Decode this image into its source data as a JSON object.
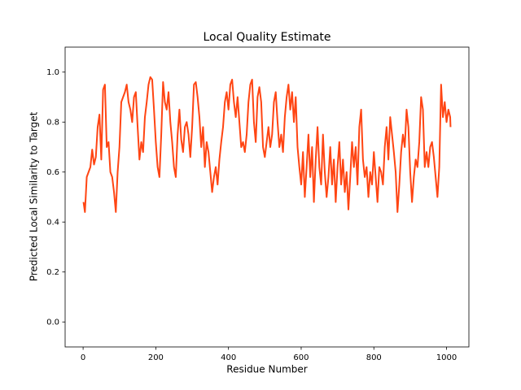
{
  "chart_data": {
    "type": "line",
    "title": "Local Quality Estimate",
    "xlabel": "Residue Number",
    "ylabel": "Predicted Local Similarity to Target",
    "xlim": [
      -49.5,
      1061.5
    ],
    "ylim": [
      -0.1,
      1.1
    ],
    "xticks": [
      0,
      200,
      400,
      600,
      800,
      1000
    ],
    "yticks": [
      {
        "value": 0,
        "label": "0.0"
      },
      0.2,
      0.4,
      0.6,
      0.8,
      {
        "value": 1,
        "label": "1.0"
      }
    ],
    "x": [
      1,
      5,
      10,
      15,
      20,
      25,
      30,
      35,
      40,
      45,
      50,
      55,
      60,
      65,
      70,
      75,
      80,
      85,
      90,
      95,
      100,
      105,
      110,
      115,
      120,
      125,
      130,
      135,
      140,
      145,
      150,
      155,
      160,
      165,
      170,
      175,
      180,
      185,
      190,
      195,
      200,
      205,
      210,
      215,
      220,
      225,
      230,
      235,
      240,
      245,
      250,
      255,
      260,
      265,
      270,
      275,
      280,
      285,
      290,
      295,
      300,
      305,
      310,
      315,
      320,
      325,
      330,
      335,
      340,
      345,
      350,
      355,
      360,
      365,
      370,
      375,
      380,
      385,
      390,
      395,
      400,
      405,
      410,
      415,
      420,
      425,
      430,
      435,
      440,
      445,
      450,
      455,
      460,
      465,
      470,
      475,
      480,
      485,
      490,
      495,
      500,
      505,
      510,
      515,
      520,
      525,
      530,
      535,
      540,
      545,
      550,
      555,
      560,
      565,
      570,
      575,
      580,
      585,
      590,
      595,
      600,
      605,
      610,
      615,
      620,
      625,
      630,
      635,
      640,
      645,
      650,
      655,
      660,
      665,
      670,
      675,
      680,
      685,
      690,
      695,
      700,
      705,
      710,
      715,
      720,
      725,
      730,
      735,
      740,
      745,
      750,
      755,
      760,
      765,
      770,
      775,
      780,
      785,
      790,
      795,
      800,
      805,
      810,
      815,
      820,
      825,
      830,
      835,
      840,
      845,
      850,
      855,
      860,
      865,
      870,
      875,
      880,
      885,
      890,
      895,
      900,
      905,
      910,
      915,
      920,
      925,
      930,
      935,
      940,
      945,
      950,
      955,
      960,
      965,
      970,
      975,
      980,
      985,
      990,
      995,
      1000,
      1005,
      1010,
      1011
    ],
    "series": [
      {
        "color": "#ff4513",
        "values": [
          0.48,
          0.44,
          0.58,
          0.6,
          0.62,
          0.69,
          0.63,
          0.66,
          0.78,
          0.83,
          0.65,
          0.93,
          0.95,
          0.7,
          0.72,
          0.6,
          0.58,
          0.52,
          0.44,
          0.6,
          0.7,
          0.88,
          0.9,
          0.92,
          0.95,
          0.88,
          0.85,
          0.8,
          0.9,
          0.92,
          0.78,
          0.65,
          0.72,
          0.68,
          0.82,
          0.88,
          0.95,
          0.98,
          0.97,
          0.85,
          0.72,
          0.62,
          0.58,
          0.75,
          0.96,
          0.88,
          0.85,
          0.92,
          0.8,
          0.72,
          0.62,
          0.58,
          0.75,
          0.85,
          0.73,
          0.68,
          0.78,
          0.8,
          0.75,
          0.66,
          0.78,
          0.95,
          0.96,
          0.9,
          0.82,
          0.7,
          0.78,
          0.62,
          0.72,
          0.68,
          0.6,
          0.52,
          0.58,
          0.62,
          0.55,
          0.65,
          0.72,
          0.78,
          0.88,
          0.92,
          0.85,
          0.95,
          0.97,
          0.88,
          0.82,
          0.9,
          0.8,
          0.7,
          0.72,
          0.68,
          0.75,
          0.88,
          0.95,
          0.97,
          0.8,
          0.72,
          0.9,
          0.94,
          0.88,
          0.7,
          0.66,
          0.72,
          0.78,
          0.7,
          0.75,
          0.88,
          0.92,
          0.8,
          0.7,
          0.75,
          0.68,
          0.82,
          0.9,
          0.95,
          0.85,
          0.92,
          0.8,
          0.9,
          0.7,
          0.62,
          0.55,
          0.68,
          0.5,
          0.62,
          0.75,
          0.58,
          0.7,
          0.48,
          0.65,
          0.78,
          0.62,
          0.55,
          0.75,
          0.6,
          0.5,
          0.58,
          0.7,
          0.55,
          0.65,
          0.48,
          0.62,
          0.72,
          0.55,
          0.65,
          0.52,
          0.6,
          0.45,
          0.58,
          0.72,
          0.62,
          0.7,
          0.55,
          0.78,
          0.85,
          0.65,
          0.58,
          0.62,
          0.5,
          0.6,
          0.55,
          0.68,
          0.58,
          0.48,
          0.62,
          0.6,
          0.55,
          0.7,
          0.78,
          0.65,
          0.82,
          0.75,
          0.68,
          0.6,
          0.44,
          0.55,
          0.68,
          0.75,
          0.7,
          0.85,
          0.78,
          0.6,
          0.48,
          0.58,
          0.65,
          0.62,
          0.72,
          0.9,
          0.85,
          0.62,
          0.68,
          0.62,
          0.7,
          0.72,
          0.66,
          0.58,
          0.5,
          0.62,
          0.95,
          0.82,
          0.88,
          0.8,
          0.85,
          0.82,
          0.78
        ]
      }
    ]
  }
}
